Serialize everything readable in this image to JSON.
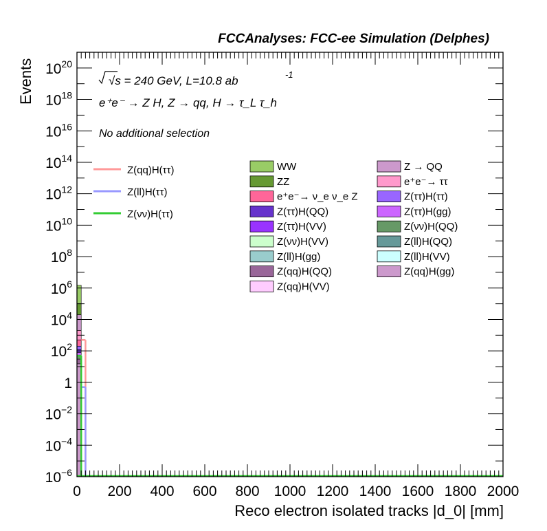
{
  "header": {
    "title": "FCCAnalyses: FCC-ee Simulation (Delphes)"
  },
  "annotations": {
    "energy_line": "√s = 240 GeV, L=10.8 ab",
    "energy_exp": "-1",
    "process_line": "e⁺e⁻ → Z H, Z → qq, H → τ_L τ_h",
    "selection": "No additional selection"
  },
  "colors": {
    "frame": "#000000",
    "WW": "#99cc66",
    "ZZ": "#669933",
    "Z_QQ": "#cc99cc",
    "ee_tautau": "#ff99cc",
    "nunuZ": "#ff6699",
    "Ztautau_Htautau": "#9966ff",
    "Ztautau_HQQ": "#6633cc",
    "Ztautau_Hgg": "#cc66ff",
    "Ztautau_HVV": "#9933ff",
    "Znunu_HQQ": "#669966",
    "Znunu_HVV": "#ccffcc",
    "Zll_HQQ": "#669999",
    "Zll_Hgg": "#99cccc",
    "Zll_HVV": "#ccffff",
    "Zqq_HQQ": "#996699",
    "Zqq_Hgg": "#cc99cc",
    "Zqq_HVV": "#ffccff",
    "sig_qq": "#ff9999",
    "sig_ll": "#9999ff",
    "sig_nunu": "#33cc33"
  },
  "chart_data": {
    "type": "bar",
    "title": "FCCAnalyses: FCC-ee Simulation (Delphes)",
    "xlabel": "Reco electron isolated tracks |d_0| [mm]",
    "ylabel": "Events",
    "xlim": [
      0,
      2000
    ],
    "ylim": [
      1e-06,
      1e+21
    ],
    "yscale": "log",
    "grid": false,
    "x_ticks": [
      "0",
      "200",
      "400",
      "600",
      "800",
      "1000",
      "1200",
      "1400",
      "1600",
      "1800",
      "2000"
    ],
    "y_ticks": [
      {
        "value": 1e-06,
        "base": "10",
        "exp": "−6"
      },
      {
        "value": 0.0001,
        "base": "10",
        "exp": "−4"
      },
      {
        "value": 0.01,
        "base": "10",
        "exp": "−2"
      },
      {
        "value": 1,
        "base": "1",
        "exp": ""
      },
      {
        "value": 100.0,
        "base": "10",
        "exp": "2"
      },
      {
        "value": 10000.0,
        "base": "10",
        "exp": "4"
      },
      {
        "value": 1000000.0,
        "base": "10",
        "exp": "6"
      },
      {
        "value": 100000000.0,
        "base": "10",
        "exp": "8"
      },
      {
        "value": 10000000000.0,
        "base": "10",
        "exp": "10"
      },
      {
        "value": 1000000000000.0,
        "base": "10",
        "exp": "12"
      },
      {
        "value": 100000000000000.0,
        "base": "10",
        "exp": "14"
      },
      {
        "value": 1e+16,
        "base": "10",
        "exp": "16"
      },
      {
        "value": 1e+18,
        "base": "10",
        "exp": "18"
      },
      {
        "value": 1e+20,
        "base": "10",
        "exp": "20"
      }
    ],
    "bin_width": 20,
    "stack_bin": [
      0,
      20
    ],
    "stacked_background": [
      {
        "name": "WW",
        "color_key": "WW",
        "from": 100000,
        "to": 1500000
      },
      {
        "name": "ZZ",
        "color_key": "ZZ",
        "from": 20000,
        "to": 100000
      },
      {
        "name": "Z → QQ",
        "color_key": "Z_QQ",
        "from": 2000,
        "to": 20000
      },
      {
        "name": "e⁺e⁻→ ττ",
        "color_key": "ee_tautau",
        "from": 500,
        "to": 2000
      },
      {
        "name": "e⁺e⁻→ ν_e ν_e Z",
        "color_key": "nunuZ",
        "from": 200,
        "to": 500
      },
      {
        "name": "Z(ττ)H(ττ)",
        "color_key": "Ztautau_Htautau",
        "from": 120,
        "to": 200
      },
      {
        "name": "Z(ττ)H(QQ)",
        "color_key": "Ztautau_HQQ",
        "from": 80,
        "to": 120
      },
      {
        "name": "Z(ττ)H(gg)",
        "color_key": "Ztautau_Hgg",
        "from": 50,
        "to": 80
      },
      {
        "name": "Z(νν)H(QQ)",
        "color_key": "Znunu_HQQ",
        "from": 30,
        "to": 50
      },
      {
        "name": "Z(qq)H(QQ)",
        "color_key": "Zqq_HQQ",
        "from": 15,
        "to": 30
      },
      {
        "name": "Z(qq)H(gg)",
        "color_key": "Zqq_Hgg",
        "from": 1e-06,
        "to": 15
      }
    ],
    "signal_lines": [
      {
        "name": "Z(qq)H(ττ)",
        "color_key": "sig_qq",
        "bin": [
          20,
          40
        ],
        "value": 500
      },
      {
        "name": "Z(ll)H(ττ)",
        "color_key": "sig_ll",
        "bin": [
          20,
          40
        ],
        "value": 0.5
      },
      {
        "name": "Z(νν)H(ττ)",
        "color_key": "sig_nunu",
        "bin": [
          0,
          20
        ],
        "value": 50
      }
    ],
    "legend_lines": [
      {
        "label": "Z(qq)H(ττ)",
        "color_key": "sig_qq"
      },
      {
        "label": "Z(ll)H(ττ)",
        "color_key": "sig_ll"
      },
      {
        "label": "Z(νν)H(ττ)",
        "color_key": "sig_nunu"
      }
    ],
    "legend_col1": [
      {
        "label": "WW",
        "color_key": "WW"
      },
      {
        "label": "ZZ",
        "color_key": "ZZ"
      },
      {
        "label": "e⁺e⁻→ ν_e ν_e Z",
        "color_key": "nunuZ"
      },
      {
        "label": "Z(ττ)H(QQ)",
        "color_key": "Ztautau_HQQ"
      },
      {
        "label": "Z(ττ)H(VV)",
        "color_key": "Ztautau_HVV"
      },
      {
        "label": "Z(νν)H(VV)",
        "color_key": "Znunu_HVV"
      },
      {
        "label": "Z(ll)H(gg)",
        "color_key": "Zll_Hgg"
      },
      {
        "label": "Z(qq)H(QQ)",
        "color_key": "Zqq_HQQ"
      },
      {
        "label": "Z(qq)H(VV)",
        "color_key": "Zqq_HVV"
      }
    ],
    "legend_col2": [
      {
        "label": "Z → QQ",
        "color_key": "Z_QQ"
      },
      {
        "label": "e⁺e⁻→ ττ",
        "color_key": "ee_tautau"
      },
      {
        "label": "Z(ττ)H(ττ)",
        "color_key": "Ztautau_Htautau"
      },
      {
        "label": "Z(ττ)H(gg)",
        "color_key": "Ztautau_Hgg"
      },
      {
        "label": "Z(νν)H(QQ)",
        "color_key": "Znunu_HQQ"
      },
      {
        "label": "Z(ll)H(QQ)",
        "color_key": "Zll_HQQ"
      },
      {
        "label": "Z(ll)H(VV)",
        "color_key": "Zll_HVV"
      },
      {
        "label": "Z(qq)H(gg)",
        "color_key": "Zqq_Hgg"
      }
    ]
  }
}
